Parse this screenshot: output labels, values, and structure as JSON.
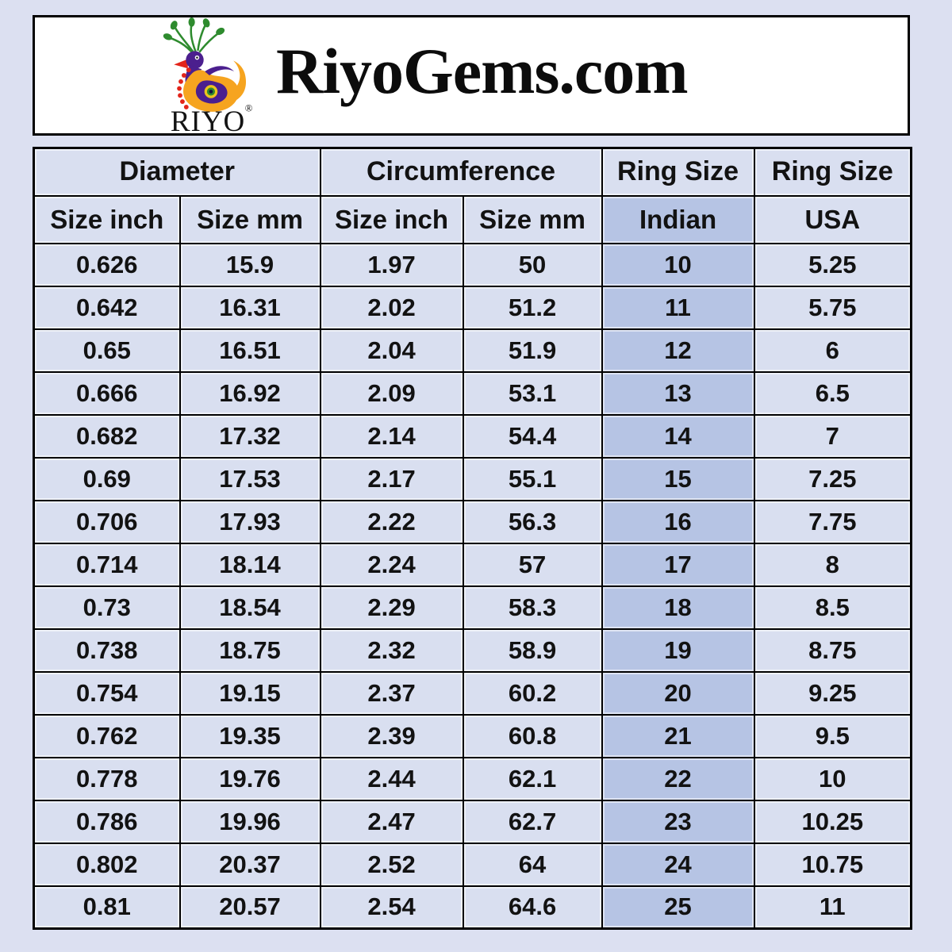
{
  "header": {
    "title": "RiyoGems.com",
    "logo_brand": "RIYO",
    "logo_registered": "®",
    "logo_icon": "peacock-icon"
  },
  "chart_data": {
    "type": "table",
    "title": "RiyoGems.com ring size conversion chart",
    "column_groups": [
      {
        "label": "Diameter",
        "span": 2
      },
      {
        "label": "Circumference",
        "span": 2
      },
      {
        "label": "Ring Size",
        "span": 1
      },
      {
        "label": "Ring Size",
        "span": 1
      }
    ],
    "columns": [
      "Size inch",
      "Size mm",
      "Size inch",
      "Size mm",
      "Indian",
      "USA"
    ],
    "highlighted_column": "Indian",
    "rows": [
      [
        "0.626",
        "15.9",
        "1.97",
        "50",
        "10",
        "5.25"
      ],
      [
        "0.642",
        "16.31",
        "2.02",
        "51.2",
        "11",
        "5.75"
      ],
      [
        "0.65",
        "16.51",
        "2.04",
        "51.9",
        "12",
        "6"
      ],
      [
        "0.666",
        "16.92",
        "2.09",
        "53.1",
        "13",
        "6.5"
      ],
      [
        "0.682",
        "17.32",
        "2.14",
        "54.4",
        "14",
        "7"
      ],
      [
        "0.69",
        "17.53",
        "2.17",
        "55.1",
        "15",
        "7.25"
      ],
      [
        "0.706",
        "17.93",
        "2.22",
        "56.3",
        "16",
        "7.75"
      ],
      [
        "0.714",
        "18.14",
        "2.24",
        "57",
        "17",
        "8"
      ],
      [
        "0.73",
        "18.54",
        "2.29",
        "58.3",
        "18",
        "8.5"
      ],
      [
        "0.738",
        "18.75",
        "2.32",
        "58.9",
        "19",
        "8.75"
      ],
      [
        "0.754",
        "19.15",
        "2.37",
        "60.2",
        "20",
        "9.25"
      ],
      [
        "0.762",
        "19.35",
        "2.39",
        "60.8",
        "21",
        "9.5"
      ],
      [
        "0.778",
        "19.76",
        "2.44",
        "62.1",
        "22",
        "10"
      ],
      [
        "0.786",
        "19.96",
        "2.47",
        "62.7",
        "23",
        "10.25"
      ],
      [
        "0.802",
        "20.37",
        "2.52",
        "64",
        "24",
        "10.75"
      ],
      [
        "0.81",
        "20.57",
        "2.54",
        "64.6",
        "25",
        "11"
      ]
    ]
  },
  "colors": {
    "page_bg": "#dce0f1",
    "box_bg": "#ffffff",
    "cell_bg": "#d9dff0",
    "hl_bg": "#b6c4e4",
    "grid": "#000000",
    "text": "#121212",
    "logo_purple": "#4b1f8e",
    "logo_green": "#2e8b2e",
    "logo_orange": "#f6a41f",
    "logo_red": "#e3241a",
    "logo_yellow": "#ecc41d"
  }
}
